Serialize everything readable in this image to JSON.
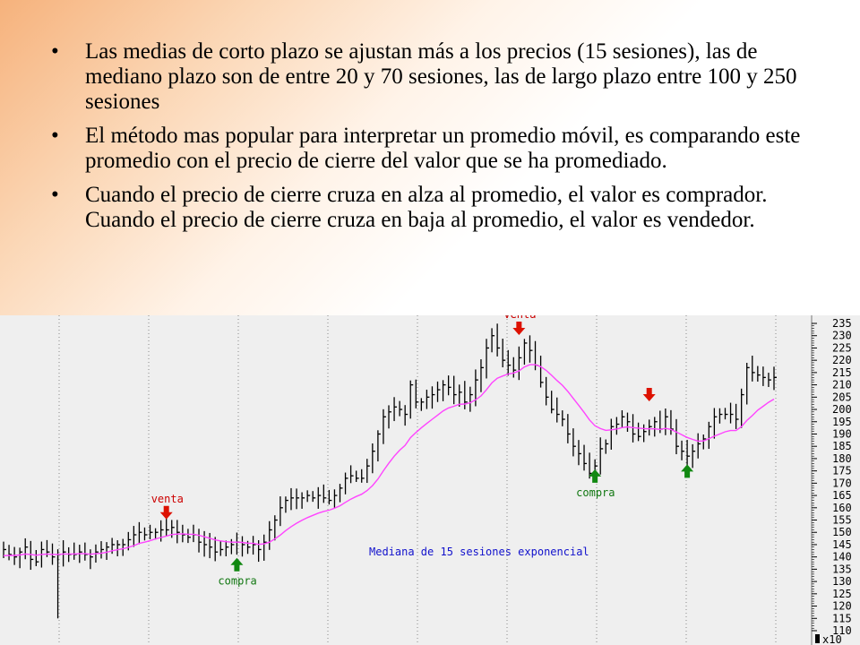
{
  "bullets": [
    {
      "bullet": "•",
      "text": "Las medias de corto plazo se ajustan más a los precios (15 sesiones), las de mediano plazo son de entre 20 y 70 sesiones, las de largo plazo entre 100 y 250 sesiones"
    },
    {
      "bullet": "•",
      "text": "El método mas popular para interpretar un promedio móvil, es comparando este promedio con el precio de cierre del valor que se ha promediado."
    },
    {
      "bullet": "•",
      "text": "Cuando el precio de cierre cruza en alza al promedio, el valor es comprador. Cuando el precio de cierre cruza en baja al promedio, el valor es vendedor."
    }
  ],
  "colors": {
    "background_gradient": "#f6b27c",
    "price_bars": "#000000",
    "moving_average": "#ff44ff",
    "sell_arrow": "#dd1100",
    "buy_arrow": "#118811",
    "annotation_sell_text": "#cc0000",
    "annotation_buy_text": "#117711",
    "caption_text": "#1111cc",
    "chart_background": "#efefef",
    "grid": "#888888"
  },
  "chart_data": {
    "type": "ohlc_bar_with_line",
    "title": "",
    "caption": "Mediana de 15 sesiones exponencial",
    "y_axis": {
      "position": "right",
      "ticks": [
        110,
        115,
        120,
        125,
        130,
        135,
        140,
        145,
        150,
        155,
        160,
        165,
        170,
        175,
        180,
        185,
        190,
        195,
        200,
        205,
        210,
        215,
        220,
        225,
        230,
        235
      ],
      "multiplier_label": "x10",
      "ylim": [
        108,
        237
      ]
    },
    "grid": "vertical dotted",
    "num_sessions": 143,
    "price_close": [
      143,
      141,
      140,
      142,
      144,
      139,
      138,
      143,
      142,
      140,
      141,
      142,
      141,
      141,
      142,
      141,
      140,
      142,
      143,
      144,
      145,
      145,
      145,
      147,
      149,
      150,
      149,
      150,
      150,
      151,
      151,
      152,
      150,
      149,
      148,
      149,
      146,
      145,
      144,
      142,
      143,
      144,
      145,
      146,
      145,
      144,
      145,
      143,
      146,
      151,
      155,
      160,
      163,
      164,
      164,
      164,
      165,
      164,
      165,
      164,
      163,
      165,
      168,
      172,
      173,
      172,
      172,
      177,
      183,
      190,
      197,
      199,
      201,
      200,
      198,
      210,
      203,
      203,
      205,
      206,
      208,
      210,
      209,
      206,
      207,
      203,
      206,
      212,
      217,
      225,
      230,
      225,
      220,
      218,
      216,
      221,
      227,
      224,
      218,
      211,
      205,
      200,
      198,
      196,
      190,
      185,
      182,
      178,
      174,
      177,
      184,
      186,
      193,
      194,
      197,
      195,
      190,
      189,
      191,
      193,
      195,
      192,
      197,
      192,
      185,
      183,
      181,
      183,
      186,
      188,
      193,
      197,
      198,
      198,
      198,
      196,
      206,
      217,
      215,
      214,
      213,
      212,
      213
    ],
    "moving_average": [
      140.5,
      140.6,
      140.6,
      140.8,
      141.2,
      141.0,
      140.7,
      141.0,
      141.2,
      141.0,
      141.0,
      141.2,
      141.2,
      141.2,
      141.3,
      141.3,
      141.1,
      141.3,
      141.5,
      141.9,
      142.5,
      142.9,
      143.3,
      143.9,
      144.6,
      145.5,
      146.0,
      146.6,
      147.3,
      147.9,
      148.5,
      149.1,
      149.3,
      149.4,
      149.2,
      149.2,
      148.8,
      148.2,
      147.6,
      146.9,
      146.5,
      146.2,
      146.0,
      146.0,
      145.9,
      145.6,
      145.5,
      145.1,
      145.3,
      146.0,
      147.3,
      148.9,
      150.7,
      152.3,
      153.7,
      154.9,
      156.0,
      156.9,
      157.8,
      158.5,
      159.0,
      159.8,
      160.8,
      162.2,
      163.5,
      164.6,
      165.5,
      167.0,
      169.0,
      171.7,
      175.0,
      178.1,
      181.0,
      183.4,
      185.4,
      188.5,
      190.6,
      192.5,
      194.3,
      196.0,
      197.7,
      199.4,
      200.6,
      201.3,
      202.1,
      202.2,
      202.7,
      203.9,
      205.5,
      208.0,
      210.8,
      212.7,
      213.6,
      214.4,
      214.8,
      215.7,
      217.3,
      218.2,
      218.2,
      217.4,
      215.9,
      213.9,
      211.8,
      209.8,
      207.3,
      204.5,
      201.7,
      198.8,
      195.7,
      193.4,
      192.2,
      191.5,
      191.7,
      192.0,
      192.6,
      192.9,
      192.6,
      192.4,
      192.2,
      192.1,
      192.1,
      191.9,
      192.3,
      191.9,
      190.8,
      189.7,
      188.6,
      187.8,
      187.1,
      187.2,
      188.1,
      189.1,
      190.0,
      190.9,
      191.4,
      191.4,
      193.0,
      195.5,
      197.5,
      199.7,
      201.3,
      202.9,
      204.2
    ],
    "annotations": [
      {
        "label": "venta",
        "type": "sell",
        "session": 30,
        "price": 152
      },
      {
        "label": "compra",
        "type": "buy",
        "session": 43,
        "price": 144
      },
      {
        "label": "venta",
        "type": "sell",
        "session": 95,
        "price": 227
      },
      {
        "label": "compra",
        "type": "buy",
        "session": 109,
        "price": 180
      },
      {
        "label": "",
        "type": "sell",
        "session": 119,
        "price": 200
      },
      {
        "label": "",
        "type": "buy",
        "session": 126,
        "price": 182
      }
    ]
  }
}
